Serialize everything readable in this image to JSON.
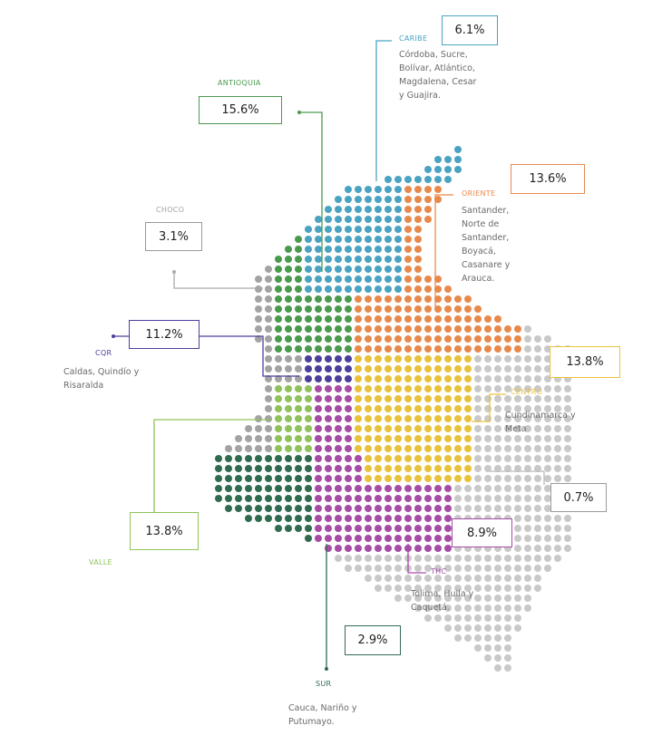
{
  "regions": [
    {
      "name": "CARIBE",
      "description": "Córdoba, Sucre, Bolívar, Atlántico, Magdalena, Cesar y Guajira.",
      "share": "6.1%",
      "color": "#4aa3c2"
    },
    {
      "name": "ANTIOQUIA",
      "share": "15.6%",
      "color": "#4a9a4e"
    },
    {
      "name": "CHOCO",
      "share": "3.1%",
      "color": "#a3a3a3"
    },
    {
      "name": "ORIENTE",
      "description": "Santander, Norte de Santander, Boyacá, Casanare y Arauca.",
      "share": "13.6%",
      "color": "#e8894c"
    },
    {
      "name": "CQR",
      "description": "Caldas, Quindío y Risaralda",
      "share": "11.2%",
      "color": "#4a3f9c"
    },
    {
      "name": "CENTRO",
      "description": "Cundinamarca y Meta",
      "share": "13.8%",
      "color": "#e9c23b"
    },
    {
      "name": "VALLE",
      "share": "13.8%",
      "color": "#8fc25a"
    },
    {
      "share": "0.7%",
      "color": "#c9c9c9"
    },
    {
      "name": "THC",
      "description": "Tolima, Huila y Caquetá.",
      "share": "8.9%",
      "color": "#a64ca6"
    },
    {
      "name": "SUR",
      "description": "Cauca, Nariño y Putumayo.",
      "share": "2.9%",
      "color": "#2f6b4f"
    }
  ]
}
